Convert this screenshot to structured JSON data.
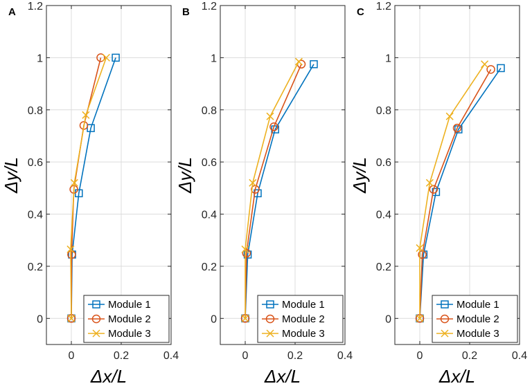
{
  "chart_data": [
    {
      "type": "line",
      "panel_label": "A",
      "xlabel": "Δx/L",
      "ylabel": "Δy/L",
      "xlim": [
        -0.1,
        0.4
      ],
      "ylim": [
        -0.1,
        1.2
      ],
      "xticks": [
        0,
        0.2,
        0.4
      ],
      "xtick_labels": [
        "0",
        "0.2",
        "0.4"
      ],
      "yticks": [
        0,
        0.2,
        0.4,
        0.6,
        0.8,
        1,
        1.2
      ],
      "ytick_labels": [
        "0",
        "0.2",
        "0.4",
        "0.6",
        "0.8",
        "1",
        "1.2"
      ],
      "grid": true,
      "legend_position": "bottom-right",
      "series": [
        {
          "name": "Module 1",
          "marker": "square",
          "color": "#0072BD",
          "x": [
            0,
            0.003,
            0.03,
            0.078,
            0.178
          ],
          "y": [
            0,
            0.245,
            0.48,
            0.73,
            1.0
          ]
        },
        {
          "name": "Module 2",
          "marker": "circle",
          "color": "#D95319",
          "x": [
            0,
            0.001,
            0.01,
            0.05,
            0.118
          ],
          "y": [
            0,
            0.245,
            0.495,
            0.74,
            1.0
          ]
        },
        {
          "name": "Module 3",
          "marker": "x",
          "color": "#EDB120",
          "x": [
            0,
            -0.003,
            0.012,
            0.058,
            0.14
          ],
          "y": [
            0,
            0.265,
            0.52,
            0.78,
            1.0
          ]
        }
      ]
    },
    {
      "type": "line",
      "panel_label": "B",
      "xlabel": "Δx/L",
      "ylabel": "Δy/L",
      "xlim": [
        -0.1,
        0.4
      ],
      "ylim": [
        -0.1,
        1.2
      ],
      "xticks": [
        0,
        0.2,
        0.4
      ],
      "xtick_labels": [
        "0",
        "0.2",
        "0.4"
      ],
      "yticks": [
        0,
        0.2,
        0.4,
        0.6,
        0.8,
        1,
        1.2
      ],
      "ytick_labels": [
        "0",
        "0.2",
        "0.4",
        "0.6",
        "0.8",
        "1",
        "1.2"
      ],
      "grid": true,
      "legend_position": "bottom-right",
      "series": [
        {
          "name": "Module 1",
          "marker": "square",
          "color": "#0072BD",
          "x": [
            0,
            0.01,
            0.05,
            0.12,
            0.275
          ],
          "y": [
            0,
            0.245,
            0.48,
            0.725,
            0.975
          ]
        },
        {
          "name": "Module 2",
          "marker": "circle",
          "color": "#D95319",
          "x": [
            0,
            0.005,
            0.04,
            0.115,
            0.225
          ],
          "y": [
            0,
            0.25,
            0.495,
            0.735,
            0.975
          ]
        },
        {
          "name": "Module 3",
          "marker": "x",
          "color": "#EDB120",
          "x": [
            0,
            0.0,
            0.03,
            0.1,
            0.215
          ],
          "y": [
            0,
            0.265,
            0.52,
            0.775,
            0.985
          ]
        }
      ]
    },
    {
      "type": "line",
      "panel_label": "C",
      "xlabel": "Δx/L",
      "ylabel": "Δy/L",
      "xlim": [
        -0.1,
        0.4
      ],
      "ylim": [
        -0.1,
        1.2
      ],
      "xticks": [
        0,
        0.2,
        0.4
      ],
      "xtick_labels": [
        "0",
        "0.2",
        "0.4"
      ],
      "yticks": [
        0,
        0.2,
        0.4,
        0.6,
        0.8,
        1,
        1.2
      ],
      "ytick_labels": [
        "0",
        "0.2",
        "0.4",
        "0.6",
        "0.8",
        "1",
        "1.2"
      ],
      "grid": true,
      "legend_position": "bottom-right",
      "series": [
        {
          "name": "Module 1",
          "marker": "square",
          "color": "#0072BD",
          "x": [
            0,
            0.015,
            0.065,
            0.155,
            0.325
          ],
          "y": [
            0,
            0.245,
            0.485,
            0.725,
            0.96
          ]
        },
        {
          "name": "Module 2",
          "marker": "circle",
          "color": "#D95319",
          "x": [
            0,
            0.01,
            0.055,
            0.15,
            0.285
          ],
          "y": [
            0,
            0.245,
            0.495,
            0.73,
            0.955
          ]
        },
        {
          "name": "Module 3",
          "marker": "x",
          "color": "#EDB120",
          "x": [
            0,
            0.0,
            0.04,
            0.12,
            0.26
          ],
          "y": [
            0,
            0.27,
            0.52,
            0.775,
            0.975
          ]
        }
      ]
    }
  ]
}
